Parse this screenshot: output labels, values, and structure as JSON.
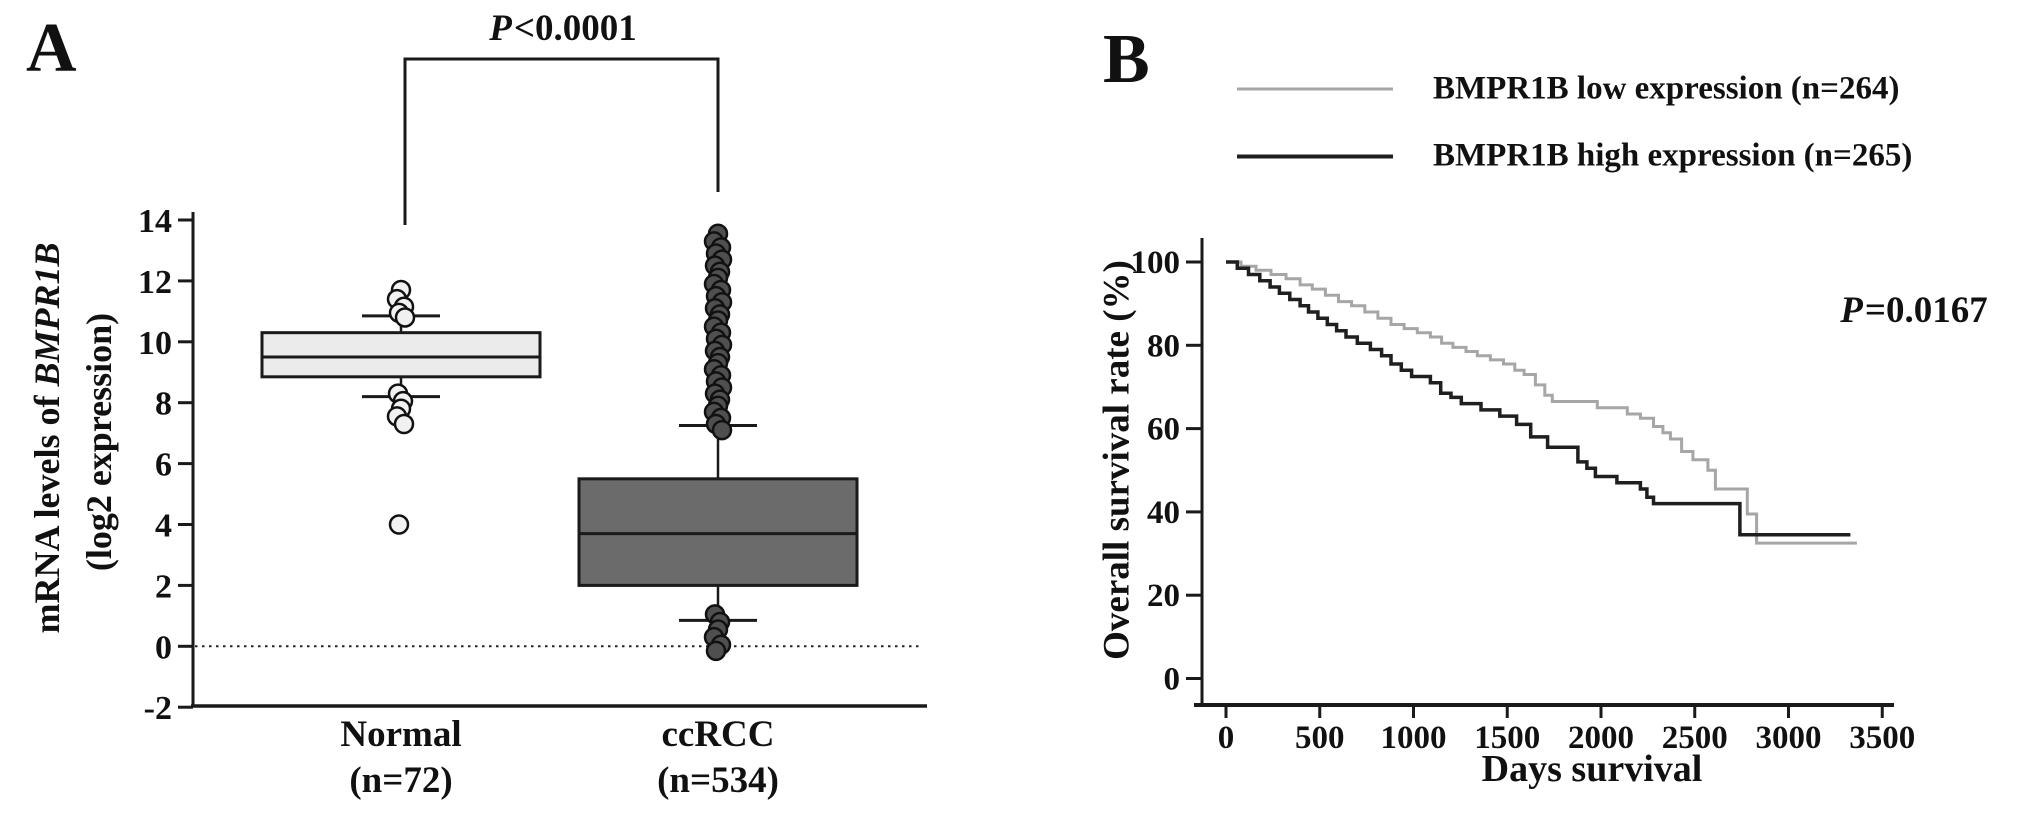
{
  "panelA": {
    "label": "A",
    "ylabel_prefix": "mRNA levels of ",
    "ylabel_gene": "BMPR1B",
    "ylabel_line2": "(log2 expression)"
  },
  "panelB": {
    "label": "B",
    "ylabel": "Overall survival rate (%)",
    "xlabel": "Days survival"
  },
  "chart_data": [
    {
      "id": "panel-a-boxplot",
      "type": "boxplot",
      "title": "",
      "ylabel": "mRNA levels of BMPR1B (log2 expression)",
      "ylim": [
        -2,
        14
      ],
      "yticks": [
        14,
        12,
        10,
        8,
        6,
        4,
        2,
        0,
        -2
      ],
      "dotted_baseline": 0,
      "significance": {
        "symbol": "P",
        "value": "<0.0001",
        "between": [
          "Normal",
          "ccRCC"
        ]
      },
      "groups": [
        {
          "label": "Normal",
          "n": "(n=72)",
          "q1": 8.85,
          "median": 9.5,
          "q3": 10.3,
          "whisker_low": 8.2,
          "whisker_high": 10.85,
          "outliers_high": [
            11.7,
            11.4,
            11.15,
            10.95,
            10.8
          ],
          "outliers_low": [
            8.3,
            8.05,
            7.8,
            7.55,
            7.3,
            4.0
          ],
          "fill": "#ebebeb",
          "dot_fill": "#f1f1f1"
        },
        {
          "label": "ccRCC",
          "n": "(n=534)",
          "q1": 2.0,
          "median": 3.7,
          "q3": 5.5,
          "whisker_low": 0.85,
          "whisker_high": 7.25,
          "outliers_high": [
            13.55,
            13.3,
            13.1,
            12.9,
            12.7,
            12.5,
            12.3,
            12.1,
            11.9,
            11.7,
            11.5,
            11.3,
            11.1,
            10.9,
            10.7,
            10.5,
            10.3,
            10.1,
            9.9,
            9.7,
            9.5,
            9.3,
            9.1,
            8.9,
            8.7,
            8.5,
            8.3,
            8.1,
            7.9,
            7.7,
            7.5,
            7.3,
            7.1
          ],
          "outliers_low": [
            1.05,
            0.8,
            0.55,
            0.3,
            0.05,
            -0.15
          ],
          "fill": "#6b6b6b",
          "dot_fill": "#4f4f4f"
        }
      ]
    },
    {
      "id": "panel-b-survival",
      "type": "line",
      "subtype": "kaplan-meier-step",
      "xlabel": "Days survival",
      "ylabel": "Overall survival rate (%)",
      "xlim": [
        0,
        3500
      ],
      "xticks": [
        0,
        500,
        1000,
        1500,
        2000,
        2500,
        3000,
        3500
      ],
      "ylim": [
        0,
        100
      ],
      "yticks": [
        100,
        80,
        60,
        40,
        20,
        0
      ],
      "legend_position": "top-right-above-plot",
      "annotation": {
        "symbol": "P",
        "value": "=0.0167"
      },
      "series": [
        {
          "name": "BMPR1B low expression (n=264)",
          "color": "#a6a6a6",
          "points": [
            [
              0,
              100
            ],
            [
              80,
              99
            ],
            [
              160,
              98
            ],
            [
              240,
              97
            ],
            [
              320,
              96
            ],
            [
              395,
              94.5
            ],
            [
              460,
              93.5
            ],
            [
              530,
              92
            ],
            [
              600,
              90.5
            ],
            [
              670,
              89.5
            ],
            [
              740,
              88
            ],
            [
              810,
              86.5
            ],
            [
              880,
              85
            ],
            [
              950,
              84
            ],
            [
              1020,
              83
            ],
            [
              1090,
              82
            ],
            [
              1150,
              80.5
            ],
            [
              1210,
              79.5
            ],
            [
              1280,
              78.5
            ],
            [
              1340,
              77.5
            ],
            [
              1410,
              76.5
            ],
            [
              1480,
              75.5
            ],
            [
              1540,
              74
            ],
            [
              1590,
              73
            ],
            [
              1650,
              70.5
            ],
            [
              1700,
              68
            ],
            [
              1740,
              66.5
            ],
            [
              1980,
              65
            ],
            [
              2140,
              63.5
            ],
            [
              2210,
              62.5
            ],
            [
              2280,
              60.5
            ],
            [
              2330,
              59
            ],
            [
              2370,
              57.5
            ],
            [
              2430,
              54.5
            ],
            [
              2490,
              52.5
            ],
            [
              2570,
              50
            ],
            [
              2610,
              45.5
            ],
            [
              2780,
              39.5
            ],
            [
              2830,
              32.5
            ],
            [
              3365,
              32.5
            ]
          ]
        },
        {
          "name": "BMPR1B high expression (n=265)",
          "color": "#1f1f1f",
          "points": [
            [
              0,
              100
            ],
            [
              60,
              98.5
            ],
            [
              120,
              97
            ],
            [
              180,
              95.5
            ],
            [
              235,
              94
            ],
            [
              285,
              92.5
            ],
            [
              340,
              91
            ],
            [
              395,
              89.5
            ],
            [
              440,
              88
            ],
            [
              490,
              86.5
            ],
            [
              540,
              85
            ],
            [
              590,
              83.5
            ],
            [
              640,
              82
            ],
            [
              700,
              80.5
            ],
            [
              770,
              79
            ],
            [
              830,
              77.5
            ],
            [
              880,
              75.5
            ],
            [
              935,
              74
            ],
            [
              990,
              72.5
            ],
            [
              1090,
              71
            ],
            [
              1145,
              68.5
            ],
            [
              1200,
              67.5
            ],
            [
              1255,
              66
            ],
            [
              1360,
              64.5
            ],
            [
              1460,
              63
            ],
            [
              1550,
              61
            ],
            [
              1625,
              58
            ],
            [
              1715,
              55.5
            ],
            [
              1877,
              52
            ],
            [
              1925,
              50.5
            ],
            [
              1970,
              48.5
            ],
            [
              2085,
              47
            ],
            [
              2210,
              45.5
            ],
            [
              2245,
              43.5
            ],
            [
              2280,
              42
            ],
            [
              2741,
              34.5
            ],
            [
              3330,
              34.5
            ]
          ]
        }
      ]
    }
  ]
}
